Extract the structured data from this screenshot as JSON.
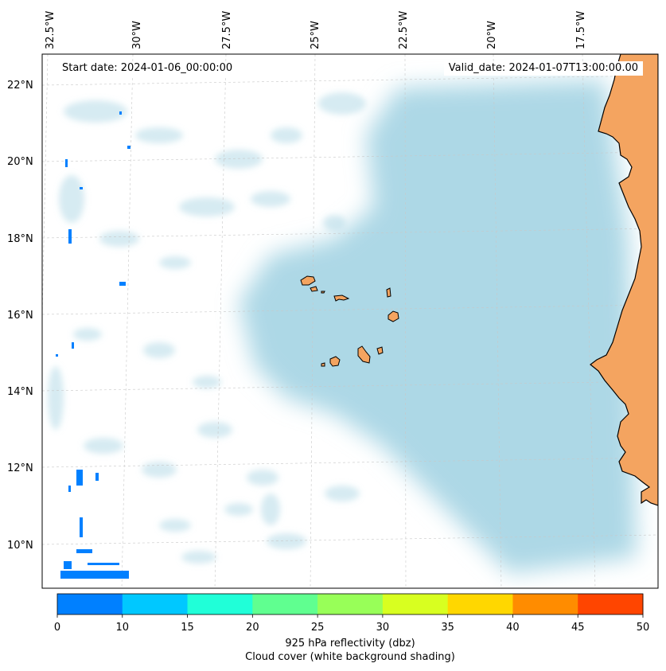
{
  "header": {
    "start_text": "Start date: 2024-01-06_00:00:00",
    "valid_text": "Valid_date: 2024-01-07T13:00:00.00"
  },
  "axes": {
    "lon_labels": [
      "32.5°W",
      "30°W",
      "27.5°W",
      "25°W",
      "22.5°W",
      "20°W",
      "17.5°W"
    ],
    "lat_labels": [
      "22°N",
      "20°N",
      "18°N",
      "16°N",
      "14°N",
      "12°N",
      "10°N"
    ]
  },
  "colors": {
    "ocean_cloud": "#add8e6",
    "land": "#f4a460",
    "coast": "#000000",
    "reflectivity_low": "#0080ff"
  },
  "colorbar": {
    "ticks": [
      "0",
      "10",
      "15",
      "20",
      "25",
      "30",
      "35",
      "40",
      "45",
      "50"
    ],
    "colors": [
      "#0080ff",
      "#00c8ff",
      "#20ffd8",
      "#60ff90",
      "#98ff58",
      "#d8ff20",
      "#ffd700",
      "#ff8c00",
      "#ff4500"
    ],
    "label_line1": "925 hPa reflectivity (dbz)",
    "label_line2": "Cloud cover (white background shading)"
  }
}
